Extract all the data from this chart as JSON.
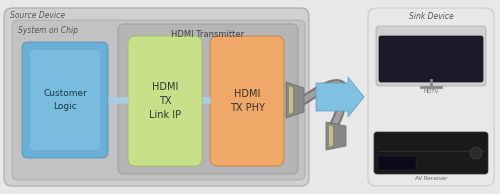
{
  "source_device_label": "Source Device",
  "soc_label": "System on Chip",
  "hdmi_tx_label": "HDMI Transmitter",
  "customer_logic_label": "Customer\nLogic",
  "hdmi_tx_link_label": "HDMI\nTX\nLink IP",
  "hdmi_tx_phy_label": "HDMI\nTX PHY",
  "sink_device_label": "Sink Device",
  "hdtv_label": "HDTV",
  "av_receiver_label": "AV Receiver",
  "bg_color": "#e8e8e8",
  "source_outer_color": "#d0d0d0",
  "soc_color": "#c2c2c2",
  "hdmi_transmitter_color": "#b5b5b5",
  "customer_logic_color": "#6ab0d4",
  "link_ip_color": "#c8e08a",
  "phy_color": "#f0a868",
  "connector_line_color": "#a8cce0",
  "cable_color": "#909090",
  "big_arrow_color": "#80c0e0",
  "sink_bg_color": "#e8e8e8",
  "tv_frame_color": "#d8d8d8",
  "tv_screen_color": "#1a1a2a",
  "av_body_color": "#1a1a1a",
  "text_color_dark": "#444444",
  "text_color_med": "#555555"
}
